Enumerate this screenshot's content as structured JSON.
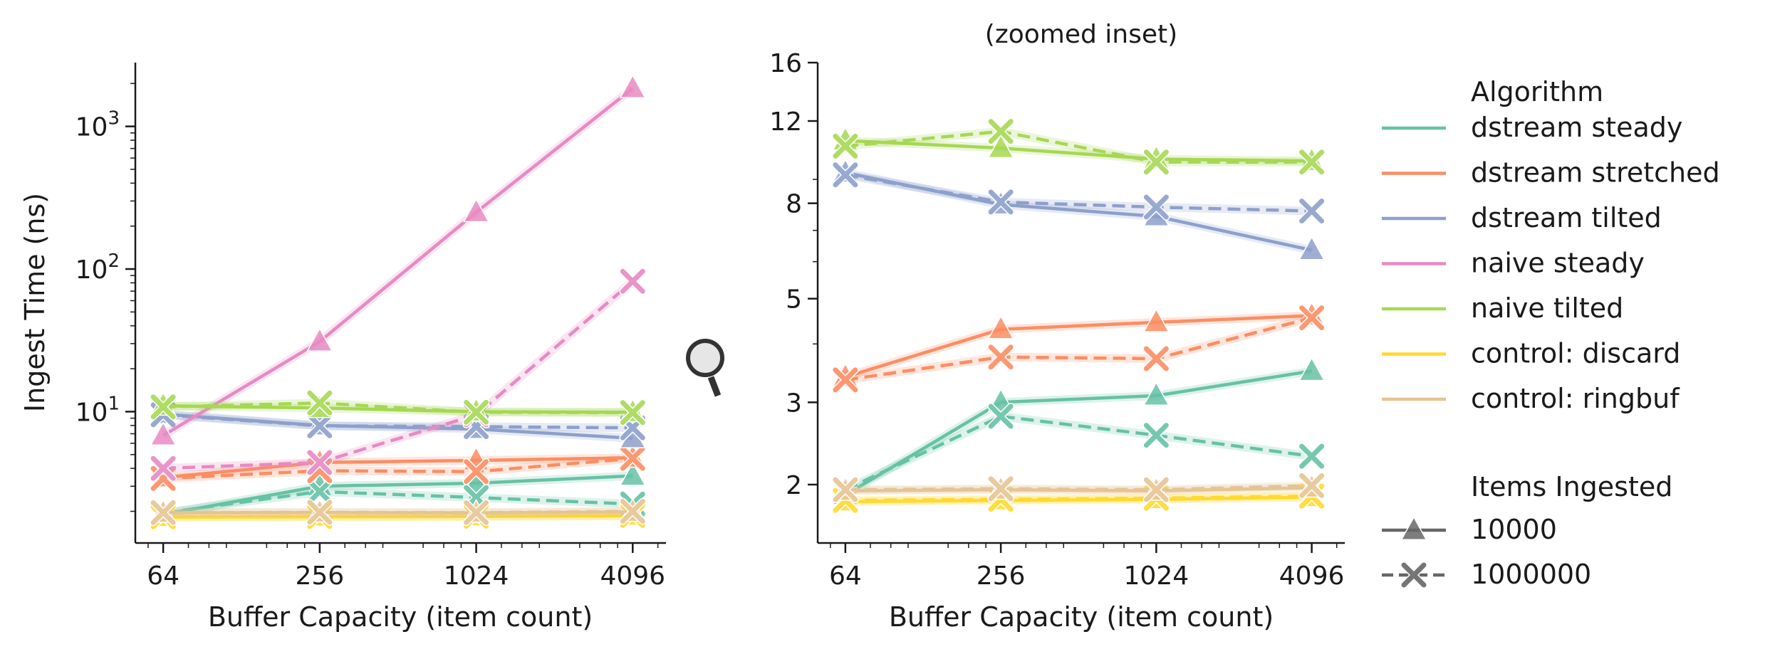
{
  "chart_data": [
    {
      "type": "line",
      "title": "",
      "xlabel": "Buffer Capacity (item count)",
      "ylabel": "Ingest Time (ns)",
      "x_scale": "log2",
      "y_scale": "log10",
      "x": [
        64,
        256,
        1024,
        4096
      ],
      "xticks": [
        "64",
        "256",
        "1024",
        "4096"
      ],
      "yticks": [
        {
          "value": 10,
          "label": "10¹"
        },
        {
          "value": 100,
          "label": "10²"
        },
        {
          "value": 1000,
          "label": "10³"
        }
      ],
      "xlim": [
        50,
        5500
      ],
      "ylim": [
        1.2,
        2800
      ],
      "grid": false,
      "series": [
        {
          "name": "dstream steady",
          "items": "10000",
          "values": [
            1.9,
            3.0,
            3.15,
            3.55
          ]
        },
        {
          "name": "dstream steady",
          "items": "1000000",
          "values": [
            1.95,
            2.75,
            2.5,
            2.25
          ]
        },
        {
          "name": "dstream stretched",
          "items": "10000",
          "values": [
            3.45,
            4.4,
            4.55,
            4.75
          ]
        },
        {
          "name": "dstream stretched",
          "items": "1000000",
          "values": [
            3.4,
            3.85,
            3.8,
            4.7
          ]
        },
        {
          "name": "dstream tilted",
          "items": "10000",
          "values": [
            9.6,
            8.0,
            7.55,
            6.5
          ]
        },
        {
          "name": "dstream tilted",
          "items": "1000000",
          "values": [
            9.5,
            7.95,
            7.85,
            7.7
          ]
        },
        {
          "name": "naive steady",
          "items": "10000",
          "values": [
            6.8,
            31,
            250,
            1850
          ]
        },
        {
          "name": "naive steady",
          "items": "1000000",
          "values": [
            4.0,
            4.4,
            9.5,
            82
          ]
        },
        {
          "name": "naive tilted",
          "items": "10000",
          "values": [
            11.0,
            10.6,
            10.0,
            9.9
          ]
        },
        {
          "name": "naive tilted",
          "items": "1000000",
          "values": [
            10.8,
            11.5,
            9.9,
            9.85
          ]
        },
        {
          "name": "control: discard",
          "items": "10000",
          "values": [
            1.82,
            1.83,
            1.84,
            1.86
          ]
        },
        {
          "name": "control: discard",
          "items": "1000000",
          "values": [
            1.83,
            1.84,
            1.85,
            1.87
          ]
        },
        {
          "name": "control: ringbuf",
          "items": "10000",
          "values": [
            1.95,
            1.96,
            1.95,
            1.98
          ]
        },
        {
          "name": "control: ringbuf",
          "items": "1000000",
          "values": [
            1.96,
            1.97,
            1.96,
            2.0
          ]
        }
      ]
    },
    {
      "type": "line",
      "title": "(zoomed inset)",
      "xlabel": "Buffer Capacity (item count)",
      "ylabel": "",
      "x_scale": "log2",
      "y_scale": "log10",
      "x": [
        64,
        256,
        1024,
        4096
      ],
      "xticks": [
        "64",
        "256",
        "1024",
        "4096"
      ],
      "yticks": [
        {
          "value": 2,
          "label": "2"
        },
        {
          "value": 3,
          "label": "3"
        },
        {
          "value": 5,
          "label": "5"
        },
        {
          "value": 8,
          "label": "8"
        },
        {
          "value": 12,
          "label": "12"
        },
        {
          "value": 16,
          "label": "16"
        }
      ],
      "xlim": [
        50,
        5500
      ],
      "ylim": [
        1.5,
        16
      ],
      "grid": false,
      "series": [
        {
          "name": "dstream steady",
          "items": "10000",
          "values": [
            1.9,
            3.0,
            3.1,
            3.5
          ]
        },
        {
          "name": "dstream steady",
          "items": "1000000",
          "values": [
            1.95,
            2.8,
            2.55,
            2.3
          ]
        },
        {
          "name": "dstream stretched",
          "items": "10000",
          "values": [
            3.4,
            4.3,
            4.45,
            4.6
          ]
        },
        {
          "name": "dstream stretched",
          "items": "1000000",
          "values": [
            3.35,
            3.75,
            3.72,
            4.55
          ]
        },
        {
          "name": "dstream tilted",
          "items": "10000",
          "values": [
            9.3,
            7.95,
            7.5,
            6.35
          ]
        },
        {
          "name": "dstream tilted",
          "items": "1000000",
          "values": [
            9.2,
            8.05,
            7.85,
            7.7
          ]
        },
        {
          "name": "naive tilted",
          "items": "10000",
          "values": [
            10.9,
            10.5,
            9.95,
            9.85
          ]
        },
        {
          "name": "naive tilted",
          "items": "1000000",
          "values": [
            10.6,
            11.4,
            9.8,
            9.8
          ]
        },
        {
          "name": "control: discard",
          "items": "10000",
          "values": [
            1.84,
            1.85,
            1.86,
            1.88
          ]
        },
        {
          "name": "control: discard",
          "items": "1000000",
          "values": [
            1.85,
            1.86,
            1.87,
            1.89
          ]
        },
        {
          "name": "control: ringbuf",
          "items": "10000",
          "values": [
            1.94,
            1.95,
            1.94,
            1.97
          ]
        },
        {
          "name": "control: ringbuf",
          "items": "1000000",
          "values": [
            1.95,
            1.96,
            1.95,
            1.99
          ]
        }
      ]
    }
  ],
  "legend": {
    "algorithm_title": "Algorithm",
    "algorithms": [
      {
        "name": "dstream steady",
        "color": "#66c2a5"
      },
      {
        "name": "dstream stretched",
        "color": "#fc8d62"
      },
      {
        "name": "dstream tilted",
        "color": "#8da0cb"
      },
      {
        "name": "naive steady",
        "color": "#e78ac3"
      },
      {
        "name": "naive tilted",
        "color": "#a6d854"
      },
      {
        "name": "control: discard",
        "color": "#ffd92f"
      },
      {
        "name": "control: ringbuf",
        "color": "#e5c494"
      }
    ],
    "items_title": "Items Ingested",
    "items": [
      {
        "name": "10000",
        "marker": "triangle",
        "dash": "solid"
      },
      {
        "name": "1000000",
        "marker": "x",
        "dash": "dashed"
      }
    ]
  },
  "icon": "magnifier-icon"
}
